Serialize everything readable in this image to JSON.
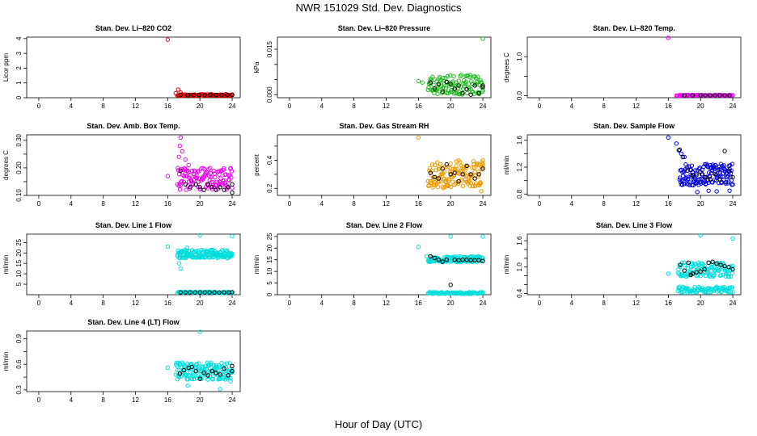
{
  "page": {
    "title": "NWR  151029  Std. Dev. Diagnostics",
    "xlabel": "Hour of Day (UTC)"
  },
  "colors": {
    "axis": "#000000",
    "reference": "#000000",
    "red": "#dd0000",
    "green": "#22bb22",
    "magenta": "#ee00ee",
    "orange": "#ee9900",
    "blue": "#0000dd",
    "cyan": "#00dddd"
  },
  "chart_data": [
    {
      "type": "scatter",
      "title": "Stan. Dev. Li–820 CO2",
      "ylabel": "Licor ppm",
      "xlim": [
        -1.5,
        25
      ],
      "xticks": [
        0,
        4,
        8,
        12,
        16,
        20,
        24
      ],
      "ylim": [
        0,
        4.1
      ],
      "yticks": [
        0,
        1,
        2,
        3,
        4
      ],
      "series_color": "red",
      "dense": {
        "x0": 17.2,
        "x1": 24,
        "n": 70,
        "ymin": 0.12,
        "ymax": 0.24,
        "seed": 11
      },
      "points": [
        [
          16,
          3.93
        ],
        [
          17.3,
          0.55
        ],
        [
          17.0,
          0.3
        ],
        [
          17.6,
          0.35
        ]
      ],
      "ref_points": [
        [
          17.6,
          0.18
        ],
        [
          18.5,
          0.17
        ],
        [
          19.2,
          0.18
        ],
        [
          19.9,
          0.18
        ],
        [
          20.6,
          0.17
        ],
        [
          21.3,
          0.18
        ],
        [
          22.0,
          0.18
        ],
        [
          22.7,
          0.18
        ],
        [
          23.4,
          0.19
        ],
        [
          24.0,
          0.2
        ]
      ]
    },
    {
      "type": "scatter",
      "title": "Stan. Dev. Li–820 Pressure",
      "ylabel": "kPa",
      "xlim": [
        -1.5,
        25
      ],
      "xticks": [
        0,
        4,
        8,
        12,
        16,
        20,
        24
      ],
      "ylim": [
        -0.001,
        0.019
      ],
      "yticks": [
        0.0,
        0.005,
        0.01,
        0.015
      ],
      "ytick_labels": [
        "0.000",
        "",
        "",
        "0.015"
      ],
      "series_color": "green",
      "dense": {
        "x0": 17.2,
        "x1": 24,
        "n": 110,
        "ymin": 0.0,
        "ymax": 0.0065,
        "seed": 23
      },
      "points": [
        [
          16,
          0.0045
        ],
        [
          24,
          0.0185
        ],
        [
          16.5,
          0.004
        ]
      ],
      "ref_points": [
        [
          17.5,
          0.004
        ],
        [
          18.0,
          0.002
        ],
        [
          18.5,
          0.0035
        ],
        [
          19.0,
          0.001
        ],
        [
          19.5,
          0.0042
        ],
        [
          20.0,
          0.0035
        ],
        [
          20.5,
          0.002
        ],
        [
          21.0,
          0.003
        ],
        [
          21.5,
          0.0005
        ],
        [
          22.0,
          0.0018
        ],
        [
          22.5,
          0.0
        ],
        [
          23.0,
          0.003
        ],
        [
          23.5,
          0.0005
        ],
        [
          24.0,
          0.003
        ],
        [
          24.0,
          0.0025
        ]
      ]
    },
    {
      "type": "scatter",
      "title": "Stan. Dev. Li–820 Temp.",
      "ylabel": "degrees C",
      "xlim": [
        -1.5,
        25
      ],
      "xticks": [
        0,
        4,
        8,
        12,
        16,
        20,
        24
      ],
      "ylim": [
        -0.05,
        1.5
      ],
      "yticks": [
        0.0,
        0.5,
        1.0
      ],
      "ytick_labels": [
        "0.0",
        "",
        "1.0"
      ],
      "series_color": "magenta",
      "dense": {
        "x0": 17.0,
        "x1": 24,
        "n": 55,
        "ymin": 0.0,
        "ymax": 0.02,
        "seed": 31
      },
      "points": [
        [
          16,
          1.48
        ]
      ],
      "ref_points": [
        [
          18.0,
          0.01
        ],
        [
          19.0,
          0.01
        ],
        [
          20.0,
          0.01
        ],
        [
          20.6,
          0.01
        ],
        [
          21.2,
          0.01
        ],
        [
          21.8,
          0.01
        ],
        [
          22.4,
          0.01
        ],
        [
          23.0,
          0.01
        ],
        [
          23.6,
          0.01
        ]
      ]
    },
    {
      "type": "scatter",
      "title": "Stan. Dev. Amb. Box Temp.",
      "ylabel": "degrees C",
      "xlim": [
        -1.5,
        25
      ],
      "xticks": [
        0,
        4,
        8,
        12,
        16,
        20,
        24
      ],
      "ylim": [
        0.1,
        0.32
      ],
      "yticks": [
        0.1,
        0.15,
        0.2,
        0.25,
        0.3
      ],
      "ytick_labels": [
        "0.10",
        "",
        "0.20",
        "",
        "0.30"
      ],
      "series_color": "magenta",
      "dense": {
        "x0": 17.2,
        "x1": 24,
        "n": 120,
        "ymin": 0.12,
        "ymax": 0.2,
        "seed": 41
      },
      "points": [
        [
          16,
          0.17
        ],
        [
          17.6,
          0.31
        ],
        [
          17.5,
          0.28
        ],
        [
          17.8,
          0.26
        ],
        [
          17.4,
          0.24
        ],
        [
          18.2,
          0.23
        ],
        [
          18.6,
          0.21
        ]
      ],
      "ref_points": [
        [
          17.6,
          0.19
        ],
        [
          18.2,
          0.14
        ],
        [
          18.8,
          0.13
        ],
        [
          19.5,
          0.14
        ],
        [
          20.0,
          0.13
        ],
        [
          20.5,
          0.12
        ],
        [
          21.0,
          0.14
        ],
        [
          21.5,
          0.13
        ],
        [
          22.0,
          0.12
        ],
        [
          22.5,
          0.13
        ],
        [
          23.0,
          0.12
        ],
        [
          23.5,
          0.13
        ],
        [
          24.0,
          0.14
        ],
        [
          24.0,
          0.11
        ]
      ]
    },
    {
      "type": "scatter",
      "title": "Stan. Dev. Gas Stream RH",
      "ylabel": "percent",
      "xlim": [
        -1.5,
        25
      ],
      "xticks": [
        0,
        4,
        8,
        12,
        16,
        20,
        24
      ],
      "ylim": [
        0.15,
        0.58
      ],
      "yticks": [
        0.2,
        0.3,
        0.4,
        0.5
      ],
      "ytick_labels": [
        "0.2",
        "",
        "0.4",
        ""
      ],
      "series_color": "orange",
      "dense": {
        "x0": 17.2,
        "x1": 24,
        "n": 130,
        "ymin": 0.2,
        "ymax": 0.4,
        "seed": 53
      },
      "points": [
        [
          16,
          0.56
        ],
        [
          24,
          0.4
        ],
        [
          23.8,
          0.18
        ]
      ],
      "ref_points": [
        [
          17.5,
          0.31
        ],
        [
          18.0,
          0.28
        ],
        [
          18.5,
          0.27
        ],
        [
          19.0,
          0.34
        ],
        [
          19.5,
          0.37
        ],
        [
          20.0,
          0.3
        ],
        [
          20.5,
          0.31
        ],
        [
          21.0,
          0.25
        ],
        [
          21.5,
          0.3
        ],
        [
          22.0,
          0.36
        ],
        [
          22.5,
          0.3
        ],
        [
          23.0,
          0.27
        ],
        [
          23.5,
          0.3
        ],
        [
          24.0,
          0.34
        ]
      ]
    },
    {
      "type": "scatter",
      "title": "Stan. Dev. Sample Flow",
      "ylabel": "ml/min",
      "xlim": [
        -1.5,
        25
      ],
      "xticks": [
        0,
        4,
        8,
        12,
        16,
        20,
        24
      ],
      "ylim": [
        0.78,
        1.68
      ],
      "yticks": [
        0.8,
        1.0,
        1.2,
        1.4,
        1.6
      ],
      "ytick_labels": [
        "0.8",
        "",
        "1.2",
        "",
        "1.6"
      ],
      "series_color": "blue",
      "dense": {
        "x0": 17.4,
        "x1": 24,
        "n": 140,
        "ymin": 0.93,
        "ymax": 1.25,
        "seed": 67
      },
      "points": [
        [
          16,
          1.64
        ],
        [
          17.0,
          1.55
        ],
        [
          17.3,
          1.45
        ],
        [
          17.6,
          1.4
        ],
        [
          18.0,
          1.35
        ],
        [
          19.6,
          0.83
        ],
        [
          21.0,
          0.85
        ],
        [
          22.0,
          0.84
        ],
        [
          23.6,
          0.85
        ]
      ],
      "ref_points": [
        [
          17.4,
          1.46
        ],
        [
          17.8,
          1.35
        ],
        [
          18.4,
          1.15
        ],
        [
          19.0,
          1.08
        ],
        [
          19.5,
          1.08
        ],
        [
          20.0,
          1.13
        ],
        [
          20.6,
          1.05
        ],
        [
          21.2,
          1.02
        ],
        [
          21.8,
          1.1
        ],
        [
          22.4,
          1.02
        ],
        [
          23.0,
          1.44
        ],
        [
          23.5,
          1.15
        ],
        [
          24.0,
          1.05
        ]
      ]
    },
    {
      "type": "scatter",
      "title": "Stan. Dev. Line 1 Flow",
      "ylabel": "ml/min",
      "xlim": [
        -1.5,
        25
      ],
      "xticks": [
        0,
        4,
        8,
        12,
        16,
        20,
        24
      ],
      "ylim": [
        0,
        29
      ],
      "yticks": [
        5,
        10,
        15,
        20,
        25
      ],
      "series_color": "cyan",
      "dense": {
        "x0": 17.2,
        "x1": 24,
        "n": 140,
        "ymin": 17.5,
        "ymax": 21.5,
        "seed": 79
      },
      "dense2": {
        "x0": 17.2,
        "x1": 24,
        "n": 60,
        "ymin": 0.8,
        "ymax": 1.4,
        "seed": 83
      },
      "points": [
        [
          16,
          23
        ],
        [
          20.0,
          28.5
        ],
        [
          24.0,
          28
        ],
        [
          17.6,
          12.5
        ],
        [
          17.4,
          15
        ],
        [
          18.4,
          22.5
        ]
      ],
      "ref_points": [
        [
          17.6,
          1.1
        ],
        [
          18.2,
          1.1
        ],
        [
          18.8,
          1.1
        ],
        [
          19.4,
          1.1
        ],
        [
          20.0,
          1.1
        ],
        [
          20.6,
          1.1
        ],
        [
          21.2,
          1.1
        ],
        [
          21.8,
          1.1
        ],
        [
          22.4,
          1.1
        ],
        [
          23.0,
          1.1
        ],
        [
          23.6,
          1.1
        ],
        [
          24.0,
          1.2
        ]
      ]
    },
    {
      "type": "scatter",
      "title": "Stan. Dev. Line 2 Flow",
      "ylabel": "ml/min",
      "xlim": [
        -1.5,
        25
      ],
      "xticks": [
        0,
        4,
        8,
        12,
        16,
        20,
        24
      ],
      "ylim": [
        0,
        26
      ],
      "yticks": [
        0,
        5,
        10,
        15,
        20,
        25
      ],
      "series_color": "cyan",
      "dense": {
        "x0": 17.2,
        "x1": 24,
        "n": 110,
        "ymin": 14,
        "ymax": 16.5,
        "seed": 97
      },
      "dense2": {
        "x0": 17.2,
        "x1": 24,
        "n": 70,
        "ymin": 0.4,
        "ymax": 1.1,
        "seed": 101
      },
      "points": [
        [
          16,
          20.5
        ],
        [
          20.0,
          25
        ],
        [
          24.0,
          25
        ],
        [
          17.0,
          16.5
        ]
      ],
      "ref_points": [
        [
          17.5,
          16.5
        ],
        [
          18.0,
          15.8
        ],
        [
          18.5,
          15.0
        ],
        [
          19.0,
          14.2
        ],
        [
          19.5,
          15.0
        ],
        [
          20.0,
          4.2
        ],
        [
          20.5,
          15.0
        ],
        [
          21.0,
          14.8
        ],
        [
          21.5,
          15.0
        ],
        [
          22.0,
          15.0
        ],
        [
          22.5,
          14.8
        ],
        [
          23.0,
          14.8
        ],
        [
          23.5,
          14.8
        ],
        [
          24.0,
          14.5
        ]
      ]
    },
    {
      "type": "scatter",
      "title": "Stan. Dev. Line 3 Flow",
      "ylabel": "ml/min",
      "xlim": [
        -1.5,
        25
      ],
      "xticks": [
        0,
        4,
        8,
        12,
        16,
        20,
        24
      ],
      "ylim": [
        0.37,
        1.75
      ],
      "yticks": [
        0.4,
        0.6,
        0.8,
        1.0,
        1.2,
        1.4,
        1.6
      ],
      "ytick_labels": [
        "0.4",
        "",
        "",
        "1.0",
        "",
        "",
        "1.6"
      ],
      "series_color": "cyan",
      "dense": {
        "x0": 17.2,
        "x1": 24,
        "n": 110,
        "ymin": 0.78,
        "ymax": 1.1,
        "seed": 113
      },
      "dense2": {
        "x0": 17.2,
        "x1": 24,
        "n": 80,
        "ymin": 0.42,
        "ymax": 0.55,
        "seed": 127
      },
      "points": [
        [
          16,
          0.85
        ],
        [
          20.0,
          1.72
        ],
        [
          24.0,
          1.65
        ],
        [
          17.4,
          0.55
        ]
      ],
      "ref_points": [
        [
          17.5,
          1.05
        ],
        [
          18.0,
          0.92
        ],
        [
          18.5,
          1.1
        ],
        [
          18.8,
          0.82
        ],
        [
          19.0,
          0.85
        ],
        [
          19.5,
          0.88
        ],
        [
          20.0,
          0.9
        ],
        [
          20.5,
          0.95
        ],
        [
          21.0,
          1.1
        ],
        [
          21.5,
          1.12
        ],
        [
          22.0,
          1.08
        ],
        [
          22.5,
          1.05
        ],
        [
          23.0,
          1.02
        ],
        [
          23.5,
          1.0
        ],
        [
          24.0,
          0.95
        ]
      ]
    },
    {
      "type": "scatter",
      "title": "Stan. Dev. Line 4 (LT) Flow",
      "ylabel": "ml/min",
      "xlim": [
        -1.5,
        25
      ],
      "xticks": [
        0,
        4,
        8,
        12,
        16,
        20,
        24
      ],
      "ylim": [
        0.28,
        0.99
      ],
      "yticks": [
        0.3,
        0.45,
        0.6,
        0.75,
        0.9
      ],
      "ytick_labels": [
        "0.3",
        "",
        "0.6",
        "",
        "0.9"
      ],
      "series_color": "cyan",
      "dense": {
        "x0": 17.0,
        "x1": 24,
        "n": 140,
        "ymin": 0.42,
        "ymax": 0.62,
        "seed": 139
      },
      "points": [
        [
          16,
          0.56
        ],
        [
          20.0,
          0.98
        ],
        [
          17.4,
          0.45
        ],
        [
          18.5,
          0.35
        ],
        [
          22.5,
          0.31
        ],
        [
          23.8,
          0.4
        ]
      ],
      "ref_points": [
        [
          17.5,
          0.49
        ],
        [
          18.0,
          0.53
        ],
        [
          18.6,
          0.56
        ],
        [
          19.0,
          0.57
        ],
        [
          19.5,
          0.52
        ],
        [
          20.0,
          0.43
        ],
        [
          20.5,
          0.5
        ],
        [
          21.0,
          0.47
        ],
        [
          21.5,
          0.52
        ],
        [
          22.0,
          0.5
        ],
        [
          22.5,
          0.48
        ],
        [
          23.0,
          0.55
        ],
        [
          23.5,
          0.47
        ],
        [
          24.0,
          0.52
        ],
        [
          24.0,
          0.58
        ]
      ]
    }
  ]
}
